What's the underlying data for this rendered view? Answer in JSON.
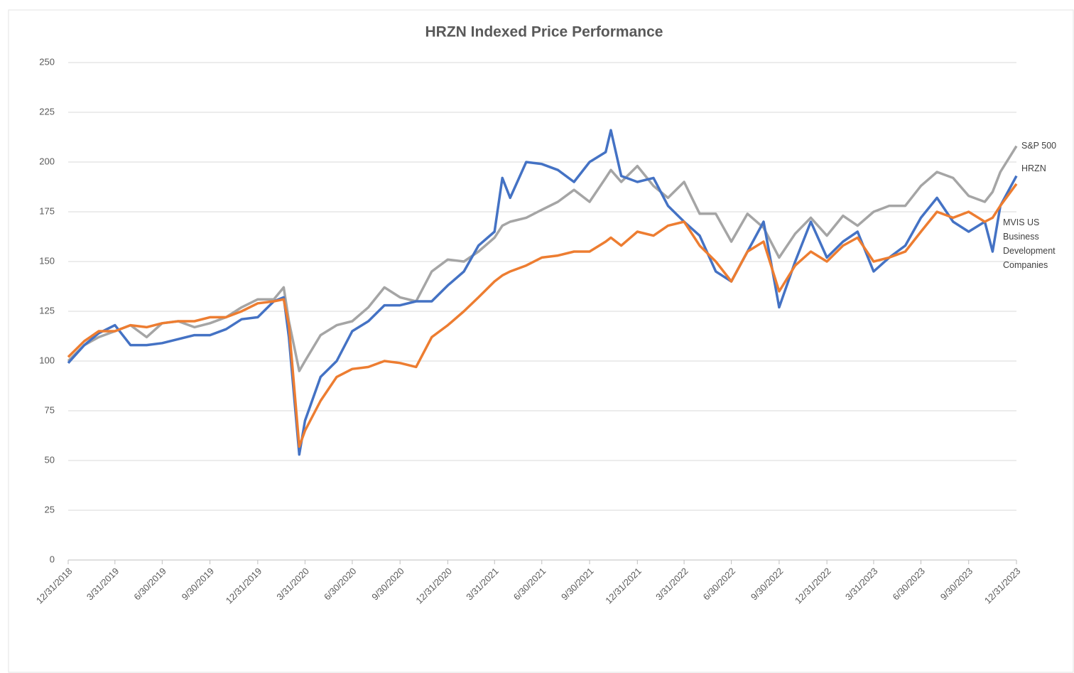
{
  "chart_data": {
    "type": "line",
    "title": "HRZN Indexed Price Performance",
    "x": [
      "12/31/2018",
      "1/31/2019",
      "2/28/2019",
      "3/31/2019",
      "4/30/2019",
      "5/31/2019",
      "6/30/2019",
      "7/31/2019",
      "8/31/2019",
      "9/30/2019",
      "10/31/2019",
      "11/30/2019",
      "12/31/2019",
      "1/31/2020",
      "2/19/2020",
      "2/29/2020",
      "3/20/2020",
      "3/31/2020",
      "4/30/2020",
      "5/31/2020",
      "6/30/2020",
      "7/31/2020",
      "8/31/2020",
      "9/30/2020",
      "10/31/2020",
      "11/30/2020",
      "12/31/2020",
      "1/31/2021",
      "2/28/2021",
      "3/31/2021",
      "4/15/2021",
      "4/30/2021",
      "5/31/2021",
      "6/30/2021",
      "7/31/2021",
      "8/31/2021",
      "9/30/2021",
      "10/31/2021",
      "11/10/2021",
      "11/30/2021",
      "12/31/2021",
      "1/31/2022",
      "2/28/2022",
      "3/31/2022",
      "4/30/2022",
      "5/31/2022",
      "6/30/2022",
      "7/31/2022",
      "8/31/2022",
      "9/30/2022",
      "10/31/2022",
      "11/30/2022",
      "12/31/2022",
      "1/31/2023",
      "2/28/2023",
      "3/31/2023",
      "4/30/2023",
      "5/31/2023",
      "6/30/2023",
      "7/31/2023",
      "8/31/2023",
      "9/30/2023",
      "10/31/2023",
      "11/15/2023",
      "11/30/2023",
      "12/31/2023"
    ],
    "series": [
      {
        "name": "S&P 500",
        "color": "#a5a5a5",
        "values": [
          100,
          108,
          112,
          115,
          118,
          112,
          119,
          120,
          117,
          119,
          122,
          127,
          131,
          131,
          137,
          120,
          95,
          100,
          113,
          118,
          120,
          127,
          137,
          132,
          130,
          145,
          151,
          150,
          155,
          162,
          168,
          170,
          172,
          176,
          180,
          186,
          180,
          192,
          196,
          190,
          198,
          188,
          182,
          190,
          174,
          174,
          160,
          174,
          167,
          152,
          164,
          172,
          163,
          173,
          168,
          175,
          178,
          178,
          188,
          195,
          192,
          183,
          180,
          185,
          195,
          208
        ]
      },
      {
        "name": "HRZN",
        "color": "#4472c4",
        "values": [
          99,
          108,
          114,
          118,
          108,
          108,
          109,
          111,
          113,
          113,
          116,
          121,
          122,
          130,
          132,
          112,
          53,
          70,
          92,
          100,
          115,
          120,
          128,
          128,
          130,
          130,
          138,
          145,
          158,
          165,
          192,
          182,
          200,
          199,
          196,
          190,
          200,
          205,
          216,
          193,
          190,
          192,
          178,
          170,
          163,
          145,
          140,
          155,
          170,
          127,
          150,
          170,
          152,
          160,
          165,
          145,
          152,
          158,
          172,
          182,
          170,
          165,
          170,
          155,
          178,
          193
        ]
      },
      {
        "name": "MVIS US Business Development Companies",
        "color": "#ed7d31",
        "values": [
          102,
          110,
          115,
          115,
          118,
          117,
          119,
          120,
          120,
          122,
          122,
          125,
          129,
          130,
          131,
          118,
          57,
          65,
          80,
          92,
          96,
          97,
          100,
          99,
          97,
          112,
          118,
          125,
          132,
          140,
          143,
          145,
          148,
          152,
          153,
          155,
          155,
          160,
          162,
          158,
          165,
          163,
          168,
          170,
          158,
          150,
          140,
          155,
          160,
          135,
          148,
          155,
          150,
          158,
          162,
          150,
          152,
          155,
          165,
          175,
          172,
          175,
          170,
          172,
          178,
          189
        ]
      }
    ],
    "xlim": [
      "12/31/2018",
      "12/31/2023"
    ],
    "xticks": [
      "12/31/2018",
      "3/31/2019",
      "6/30/2019",
      "9/30/2019",
      "12/31/2019",
      "3/31/2020",
      "6/30/2020",
      "9/30/2020",
      "12/31/2020",
      "3/31/2021",
      "6/30/2021",
      "9/30/2021",
      "12/31/2021",
      "3/31/2022",
      "6/30/2022",
      "9/30/2022",
      "12/31/2022",
      "3/31/2023",
      "6/30/2023",
      "9/30/2023",
      "12/31/2023"
    ],
    "ylim": [
      0,
      250
    ],
    "yticks": [
      0,
      25,
      50,
      75,
      100,
      125,
      150,
      175,
      200,
      225,
      250
    ],
    "grid": true
  }
}
